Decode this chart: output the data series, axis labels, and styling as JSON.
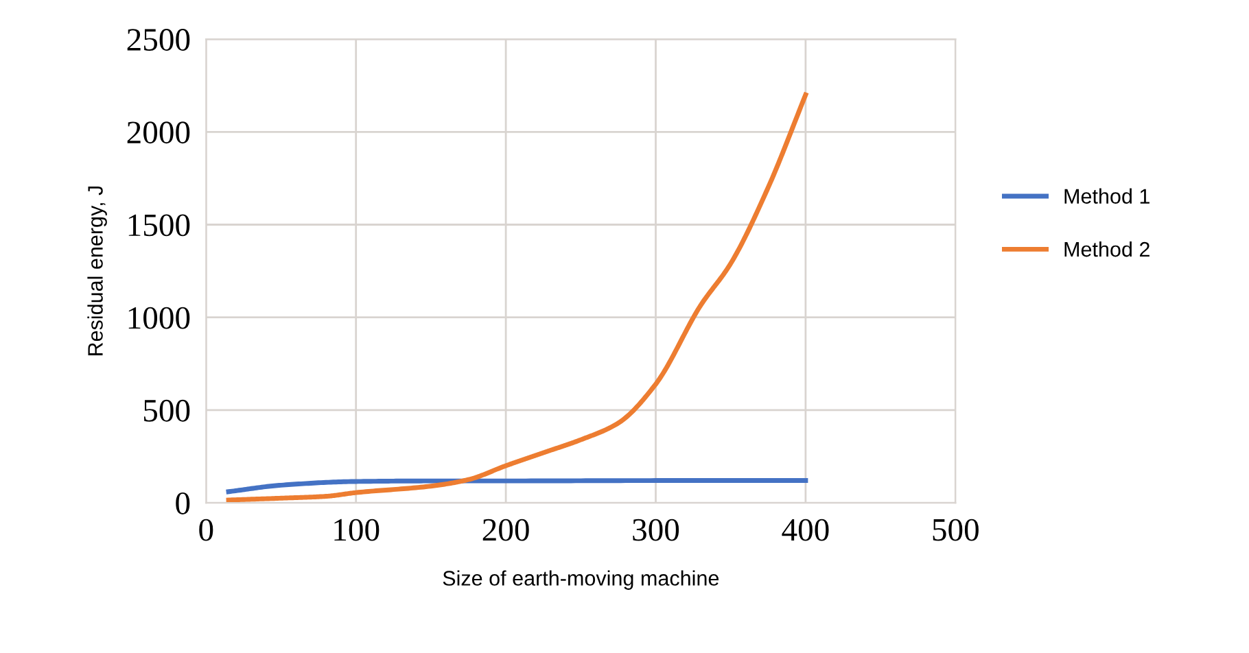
{
  "chart_data": {
    "type": "line",
    "xlabel": "Size of earth-moving machine",
    "ylabel": "Residual energy, J",
    "xlim": [
      0,
      500
    ],
    "xticks": [
      0,
      100,
      200,
      300,
      400,
      500
    ],
    "ylim": [
      0,
      2500
    ],
    "yticks": [
      0,
      500,
      1000,
      1500,
      2000,
      2500
    ],
    "grid": true,
    "legend": "right",
    "marker": "none",
    "line_style": "solid",
    "series": [
      {
        "name": "Method 1",
        "color": "#4472c4",
        "x": [
          15,
          50,
          100,
          150,
          200,
          300,
          400
        ],
        "values": [
          60,
          95,
          115,
          118,
          118,
          120,
          120
        ]
      },
      {
        "name": "Method 2",
        "color": "#ed7d31",
        "x": [
          15,
          50,
          80,
          100,
          150,
          175,
          200,
          225,
          250,
          275,
          300,
          330,
          350,
          375,
          400
        ],
        "values": [
          15,
          25,
          35,
          55,
          90,
          125,
          200,
          270,
          340,
          430,
          640,
          1065,
          1290,
          1700,
          2200
        ]
      }
    ]
  }
}
